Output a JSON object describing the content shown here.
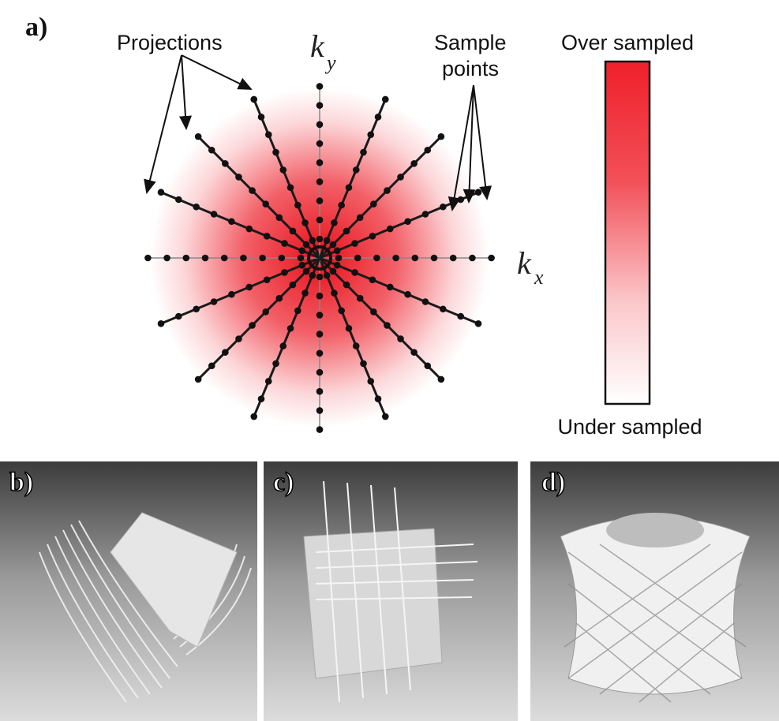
{
  "panel_a": {
    "label": "a)",
    "projections": "Projections",
    "ky": {
      "base": "k",
      "sub": "y"
    },
    "kx": {
      "base": "k",
      "sub": "x"
    },
    "sample_points": [
      "Sample",
      "points"
    ],
    "colorbar": {
      "top": "Over sampled",
      "bottom": "Under sampled"
    }
  },
  "panels": [
    {
      "label": "b)"
    },
    {
      "label": "c)"
    },
    {
      "label": "d)"
    }
  ]
}
